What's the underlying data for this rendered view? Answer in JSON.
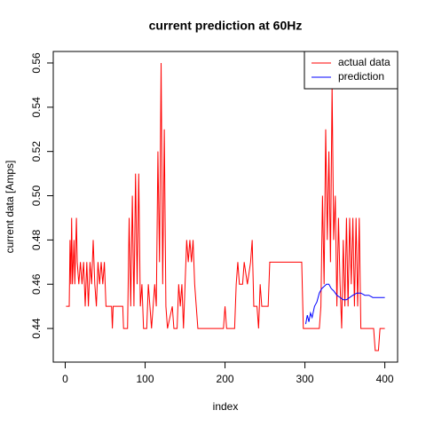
{
  "chart_data": {
    "type": "line",
    "title": "current prediction at 60Hz",
    "xlabel": "index",
    "ylabel": "current data [Amps]",
    "xlim": [
      -15,
      416
    ],
    "ylim": [
      0.4248,
      0.5652
    ],
    "xticks": [
      0,
      100,
      200,
      300,
      400
    ],
    "yticks": [
      0.44,
      0.46,
      0.48,
      {
        "value": 0.5,
        "label": "0.50"
      },
      0.52,
      0.54,
      0.56
    ],
    "legend": "topright",
    "series": [
      {
        "name": "actual data",
        "color": "#ff0000",
        "x": [
          1,
          5,
          6,
          7,
          8,
          9,
          11,
          12,
          14,
          15,
          17,
          19,
          21,
          23,
          25,
          27,
          29,
          31,
          33,
          35,
          37,
          39,
          41,
          43,
          45,
          47,
          49,
          51,
          58,
          59,
          60,
          72,
          73,
          78,
          80,
          82,
          84,
          86,
          88,
          90,
          92,
          94,
          96,
          98,
          102,
          104,
          106,
          108,
          112,
          114,
          116,
          118,
          120,
          122,
          124,
          126,
          128,
          134,
          136,
          140,
          142,
          144,
          146,
          148,
          150,
          152,
          154,
          156,
          158,
          160,
          162,
          164,
          166,
          198,
          200,
          202,
          212,
          214,
          216,
          218,
          222,
          224,
          228,
          232,
          234,
          236,
          240,
          242,
          244,
          246,
          254,
          256,
          296,
          298,
          318,
          320,
          322,
          324,
          326,
          328,
          330,
          332,
          334,
          336,
          338,
          340,
          342,
          344,
          346,
          348,
          350,
          352,
          354,
          356,
          358,
          360,
          362,
          364,
          366,
          368,
          370,
          386,
          388,
          392,
          394,
          400
        ],
        "values": [
          0.45,
          0.45,
          0.48,
          0.46,
          0.49,
          0.46,
          0.48,
          0.46,
          0.49,
          0.47,
          0.46,
          0.47,
          0.46,
          0.47,
          0.45,
          0.47,
          0.45,
          0.47,
          0.46,
          0.48,
          0.46,
          0.45,
          0.47,
          0.46,
          0.47,
          0.46,
          0.47,
          0.45,
          0.45,
          0.44,
          0.45,
          0.45,
          0.44,
          0.44,
          0.49,
          0.45,
          0.5,
          0.45,
          0.51,
          0.46,
          0.51,
          0.45,
          0.46,
          0.44,
          0.44,
          0.46,
          0.45,
          0.44,
          0.46,
          0.45,
          0.52,
          0.47,
          0.56,
          0.46,
          0.53,
          0.45,
          0.44,
          0.45,
          0.44,
          0.44,
          0.46,
          0.45,
          0.46,
          0.44,
          0.46,
          0.48,
          0.47,
          0.48,
          0.47,
          0.48,
          0.46,
          0.45,
          0.44,
          0.44,
          0.45,
          0.44,
          0.44,
          0.46,
          0.47,
          0.46,
          0.46,
          0.47,
          0.46,
          0.47,
          0.48,
          0.45,
          0.45,
          0.44,
          0.46,
          0.45,
          0.45,
          0.47,
          0.47,
          0.44,
          0.44,
          0.45,
          0.5,
          0.46,
          0.53,
          0.48,
          0.52,
          0.47,
          0.55,
          0.48,
          0.5,
          0.45,
          0.49,
          0.46,
          0.44,
          0.48,
          0.45,
          0.49,
          0.45,
          0.49,
          0.46,
          0.49,
          0.45,
          0.49,
          0.45,
          0.49,
          0.44,
          0.44,
          0.43,
          0.43,
          0.44,
          0.44
        ]
      },
      {
        "name": "prediction",
        "color": "#0000ff",
        "x": [
          301,
          303,
          305,
          307,
          309,
          312,
          315,
          318,
          321,
          324,
          327,
          330,
          333,
          336,
          340,
          344,
          348,
          352,
          356,
          360,
          365,
          370,
          375,
          380,
          385,
          390,
          395,
          400
        ],
        "values": [
          0.442,
          0.446,
          0.443,
          0.447,
          0.445,
          0.45,
          0.452,
          0.456,
          0.458,
          0.459,
          0.46,
          0.46,
          0.458,
          0.457,
          0.455,
          0.454,
          0.453,
          0.453,
          0.454,
          0.455,
          0.456,
          0.456,
          0.455,
          0.455,
          0.454,
          0.454,
          0.454,
          0.454
        ]
      }
    ]
  }
}
